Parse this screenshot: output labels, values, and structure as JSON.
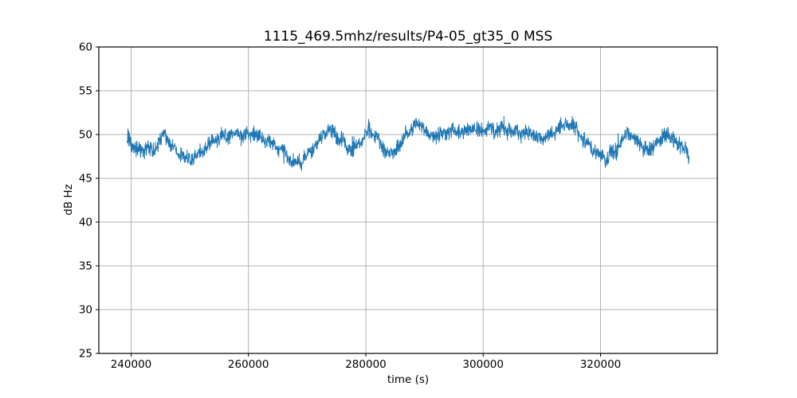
{
  "figure": {
    "title": "1115_469.5mhz/results/P4-05_gt35_0 MSS",
    "xlabel": "time (s)",
    "ylabel": "dB Hz",
    "background_color": "#ffffff"
  },
  "chart_data": {
    "type": "line",
    "title": "1115_469.5mhz/results/P4-05_gt35_0 MSS",
    "xlabel": "time (s)",
    "ylabel": "dB Hz",
    "xlim": [
      234500,
      339900
    ],
    "ylim": [
      25,
      60
    ],
    "x_ticks": [
      240000,
      260000,
      280000,
      300000,
      320000
    ],
    "y_ticks": [
      25,
      30,
      35,
      40,
      45,
      50,
      55,
      60
    ],
    "grid": true,
    "legend": false,
    "line_color": "#1f77b4",
    "grid_color": "#b2b2b2",
    "spine_color": "#000000",
    "tick_label_color": "#000000",
    "noise_amplitude_db": 0.55,
    "series": [
      {
        "name": "MSS",
        "x": [
          239300,
          240000,
          241000,
          242000,
          242800,
          243600,
          244400,
          245400,
          246200,
          247000,
          248000,
          249000,
          250000,
          251000,
          252000,
          253000,
          254200,
          255500,
          257000,
          258500,
          260000,
          261500,
          263000,
          264500,
          265800,
          267100,
          268300,
          269500,
          270800,
          272000,
          273200,
          273900,
          274800,
          276000,
          276900,
          277800,
          278800,
          279800,
          280500,
          281300,
          282300,
          283300,
          284300,
          285300,
          286300,
          287300,
          288300,
          289200,
          290000,
          291000,
          291900,
          293000,
          294500,
          296000,
          297500,
          299000,
          300500,
          302000,
          303500,
          305000,
          306500,
          308000,
          309000,
          310000,
          311000,
          312000,
          313000,
          314000,
          315000,
          315800,
          316800,
          317800,
          318800,
          319800,
          320800,
          321800,
          322800,
          323800,
          324600,
          325400,
          326400,
          327400,
          328200,
          329200,
          330200,
          331000,
          331800,
          332800,
          333800,
          334600,
          335100
        ],
        "y": [
          49.9,
          49.0,
          48.2,
          48.0,
          48.4,
          48.1,
          48.6,
          50.1,
          49.6,
          48.6,
          47.8,
          47.4,
          47.1,
          47.4,
          48.0,
          48.7,
          49.3,
          49.7,
          49.9,
          50.1,
          50.0,
          49.9,
          49.4,
          48.8,
          48.2,
          46.9,
          46.8,
          47.3,
          48.2,
          49.2,
          50.2,
          50.5,
          50.2,
          49.2,
          48.4,
          48.3,
          48.9,
          49.8,
          50.4,
          50.1,
          49.2,
          48.3,
          47.8,
          48.4,
          49.5,
          50.5,
          51.1,
          51.3,
          50.7,
          49.9,
          49.7,
          50.0,
          50.3,
          50.4,
          50.4,
          50.5,
          50.6,
          50.7,
          50.6,
          50.3,
          50.1,
          50.1,
          49.8,
          49.5,
          49.6,
          50.2,
          50.8,
          51.0,
          51.1,
          50.6,
          49.6,
          48.8,
          48.2,
          47.5,
          47.2,
          47.6,
          48.3,
          49.3,
          50.1,
          49.9,
          49.0,
          48.4,
          48.2,
          48.7,
          49.4,
          50.0,
          49.8,
          49.1,
          48.6,
          48.2,
          47.1
        ]
      }
    ]
  }
}
